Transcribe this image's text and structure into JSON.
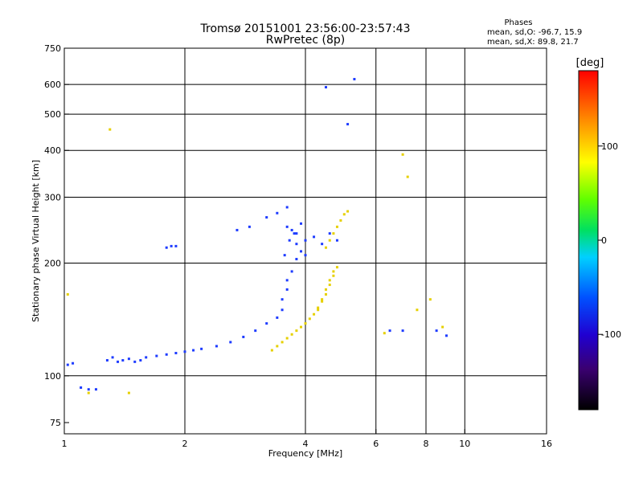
{
  "chart_data": {
    "type": "scatter",
    "title": "Tromsø 20151001 23:56:00-23:57:43",
    "subtitle": "RwPretec (8p)",
    "xlabel": "Frequency [MHz]",
    "ylabel": "Stationary phase Virtual Height [km]",
    "x_scale": "log",
    "y_scale": "log",
    "xlim": [
      1,
      16
    ],
    "ylim": [
      70,
      750
    ],
    "x_ticks": [
      1,
      2,
      4,
      6,
      8,
      10,
      16
    ],
    "x_tick_labels": [
      "1",
      "2",
      "4",
      "6",
      "8",
      "10",
      "16"
    ],
    "x_gridlines": [
      2,
      4,
      6,
      8,
      10
    ],
    "y_ticks": [
      75,
      100,
      200,
      300,
      400,
      500,
      600,
      750
    ],
    "y_tick_labels": [
      "75",
      "100",
      "200",
      "300",
      "400",
      "500",
      "600",
      "750"
    ],
    "y_gridlines": [
      100,
      200,
      300,
      400,
      500,
      600
    ],
    "grid": true,
    "legend": {
      "title": "Phases",
      "lines": [
        "mean, sd,O: -96.7, 15.9",
        "mean, sd,X:  89.8, 21.7"
      ],
      "placement": "top-right"
    },
    "colorbar": {
      "label": "[deg]",
      "range": [
        -180,
        180
      ],
      "ticks": [
        100,
        0,
        -100
      ],
      "tick_labels": [
        "100",
        "0",
        "-100"
      ],
      "colormap": "rainbow (black-purple-blue-cyan-green-yellow-orange-red)"
    },
    "series": [
      {
        "name": "O",
        "color": "#1e3cff",
        "x": [
          1.02,
          1.05,
          1.1,
          1.15,
          1.2,
          1.28,
          1.32,
          1.36,
          1.4,
          1.45,
          1.5,
          1.55,
          1.6,
          1.7,
          1.8,
          1.9,
          2.0,
          2.1,
          2.2,
          2.4,
          2.6,
          2.8,
          3.0,
          3.2,
          3.4,
          3.5,
          3.6,
          3.7,
          3.8,
          3.6,
          3.5,
          3.55,
          3.65,
          3.75,
          3.8,
          3.9,
          4.0,
          3.6,
          3.7,
          3.8,
          3.9,
          4.0,
          4.2,
          4.4,
          4.6,
          4.8,
          1.8,
          1.85,
          1.9,
          2.7,
          2.9,
          3.2,
          3.4,
          3.6,
          4.5,
          5.1,
          5.3,
          6.5,
          7.0,
          8.5,
          9.0
        ],
        "y": [
          107,
          108,
          93,
          92,
          92,
          110,
          112,
          109,
          110,
          111,
          109,
          110,
          112,
          113,
          114,
          115,
          116,
          117,
          118,
          120,
          123,
          127,
          132,
          138,
          143,
          150,
          170,
          190,
          205,
          180,
          160,
          210,
          230,
          240,
          225,
          215,
          210,
          250,
          245,
          240,
          255,
          230,
          235,
          225,
          240,
          230,
          220,
          222,
          222,
          245,
          250,
          265,
          272,
          282,
          590,
          470,
          620,
          132,
          132,
          132,
          128
        ]
      },
      {
        "name": "X",
        "color": "#e6d000",
        "x": [
          3.3,
          3.4,
          3.5,
          3.6,
          3.7,
          3.8,
          3.9,
          4.0,
          4.1,
          4.2,
          4.3,
          4.4,
          4.5,
          4.6,
          4.7,
          4.8,
          4.3,
          4.4,
          4.5,
          4.6,
          4.7,
          4.5,
          4.6,
          4.7,
          4.8,
          4.9,
          5.0,
          5.1,
          1.02,
          1.15,
          1.45,
          1.3,
          7.0,
          7.2,
          7.6,
          8.2,
          8.8,
          6.3
        ],
        "y": [
          117,
          120,
          123,
          126,
          129,
          132,
          135,
          138,
          142,
          146,
          152,
          158,
          165,
          175,
          185,
          195,
          150,
          160,
          170,
          180,
          190,
          220,
          230,
          240,
          250,
          260,
          270,
          275,
          165,
          90,
          90,
          455,
          390,
          340,
          150,
          160,
          135,
          130
        ]
      }
    ]
  }
}
